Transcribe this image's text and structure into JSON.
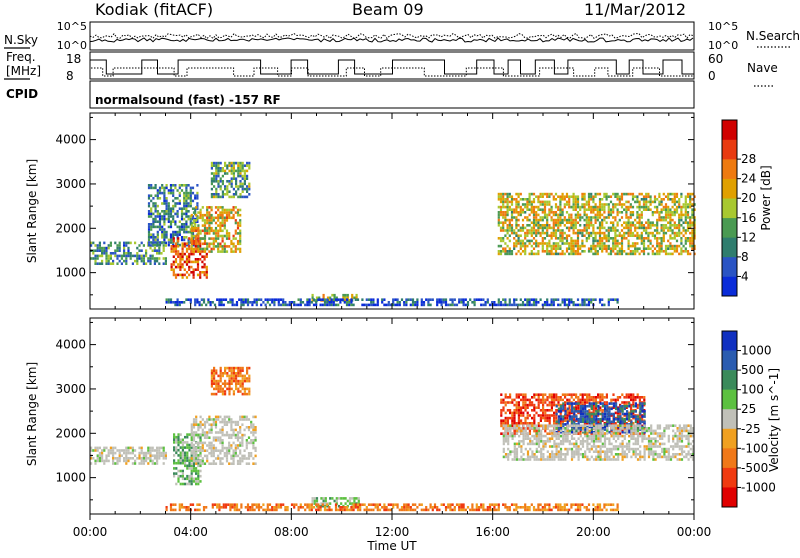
{
  "header": {
    "station": "Kodiak (fitACF)",
    "beam": "Beam 09",
    "date": "11/Mar/2012"
  },
  "noise_panel": {
    "left_label": "N.Sky",
    "right_label": "N.Search",
    "left_ticks": [
      "10^5",
      "10^0"
    ],
    "right_ticks": [
      "10^5",
      "10^0"
    ]
  },
  "freq_panel": {
    "left_label_1": "Freq.",
    "left_label_2": "[MHz]",
    "left_ticks": [
      "18",
      "8"
    ],
    "right_label": "Nave",
    "right_ticks": [
      "60",
      "0"
    ]
  },
  "cpid_panel": {
    "label": "CPID",
    "text": "normalsound (fast) -157 RF"
  },
  "time_axis": {
    "label": "Time UT",
    "ticks": [
      "00:00",
      "04:00",
      "08:00",
      "12:00",
      "16:00",
      "20:00",
      "00:00"
    ]
  },
  "chart_data": [
    {
      "type": "heatmap",
      "panel": "power",
      "ylabel": "Slant Range [km]",
      "y_ticks": [
        1000,
        2000,
        3000,
        4000
      ],
      "ylim": [
        180,
        4600
      ],
      "xlim_hours": [
        0,
        24
      ],
      "colorbar_label": "Power [dB]",
      "colorbar_ticks": [
        "4",
        "8",
        "12",
        "16",
        "20",
        "24",
        "28"
      ],
      "colors": [
        "#0a2cd8",
        "#2a54c4",
        "#2f7d6e",
        "#4a9a52",
        "#a8c830",
        "#e0a000",
        "#ee7a10",
        "#e83a10",
        "#d00000"
      ],
      "echo_regions": [
        {
          "t": [
            0.0,
            3.0
          ],
          "range_km": [
            1200,
            1700
          ],
          "level": 0.3
        },
        {
          "t": [
            2.3,
            4.3
          ],
          "range_km": [
            1600,
            3000
          ],
          "level": 0.25
        },
        {
          "t": [
            3.2,
            4.6
          ],
          "range_km": [
            900,
            1800
          ],
          "level": 0.85
        },
        {
          "t": [
            4.0,
            6.0
          ],
          "range_km": [
            1500,
            2500
          ],
          "level": 0.6
        },
        {
          "t": [
            4.8,
            6.3
          ],
          "range_km": [
            2700,
            3500
          ],
          "level": 0.35
        },
        {
          "t": [
            8.8,
            10.7
          ],
          "range_km": [
            400,
            520
          ],
          "level": 0.55
        },
        {
          "t": [
            16.2,
            24.0
          ],
          "range_km": [
            1400,
            2800
          ],
          "level": 0.55
        },
        {
          "t": [
            3.0,
            21.0
          ],
          "range_km": [
            250,
            420
          ],
          "level": 0.1
        }
      ]
    },
    {
      "type": "heatmap",
      "panel": "velocity",
      "ylabel": "Slant Range [km]",
      "y_ticks": [
        1000,
        2000,
        3000,
        4000
      ],
      "ylim": [
        180,
        4600
      ],
      "xlim_hours": [
        0,
        24
      ],
      "colorbar_label": "Velocity [m s^-1]",
      "colorbar_ticks": [
        "1000",
        "500",
        "100",
        "25",
        "-25",
        "-100",
        "-500",
        "-1000"
      ],
      "colors": [
        "#1030c0",
        "#2a5cb0",
        "#3a8a5a",
        "#5cc040",
        "#c0c0b8",
        "#f0a020",
        "#f07818",
        "#f03a10",
        "#e00000"
      ],
      "echo_regions": [
        {
          "t": [
            0.0,
            3.0
          ],
          "range_km": [
            1300,
            1700
          ],
          "velocity": 0
        },
        {
          "t": [
            3.3,
            4.4
          ],
          "range_km": [
            850,
            2000
          ],
          "velocity": 100
        },
        {
          "t": [
            4.0,
            6.6
          ],
          "range_km": [
            1300,
            2400
          ],
          "velocity": 0
        },
        {
          "t": [
            4.8,
            6.3
          ],
          "range_km": [
            2900,
            3500
          ],
          "velocity": -100
        },
        {
          "t": [
            8.8,
            10.7
          ],
          "range_km": [
            370,
            560
          ],
          "velocity": 100
        },
        {
          "t": [
            16.3,
            22.0
          ],
          "range_km": [
            2000,
            2900
          ],
          "velocity": -500
        },
        {
          "t": [
            18.5,
            22.0
          ],
          "range_km": [
            2000,
            2700
          ],
          "velocity": 500
        },
        {
          "t": [
            16.4,
            24.0
          ],
          "range_km": [
            1400,
            2200
          ],
          "velocity": 0
        },
        {
          "t": [
            3.0,
            21.0
          ],
          "range_km": [
            250,
            420
          ],
          "velocity": -100
        }
      ]
    }
  ]
}
